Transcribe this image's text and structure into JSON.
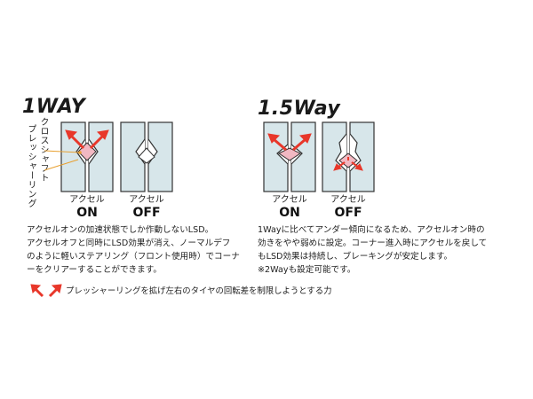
{
  "sections": [
    {
      "title": "1WAY",
      "callout_labels": [
        "クロスシャフト",
        "プレッシャーリング"
      ],
      "states": [
        {
          "label": "アクセル",
          "value": "ON"
        },
        {
          "label": "アクセル",
          "value": "OFF"
        }
      ],
      "description_lines": [
        "アクセルオンの加速状態でしか作動しないLSD。",
        "アクセルオフと同時にLSD効果が消え、ノーマルデフ",
        "のように軽いステアリング（フロント使用時）でコーナ",
        "ーをクリアーすることができます。"
      ]
    },
    {
      "title": "1.5Way",
      "states": [
        {
          "label": "アクセル",
          "value": "ON"
        },
        {
          "label": "アクセル",
          "value": "OFF"
        }
      ],
      "description_lines": [
        "1Wayに比べてアンダー傾向になるため、アクセルオン時の",
        "効きをやや弱めに設定。コーナー進入時にアクセルを戻して",
        "もLSD効果は持続し、ブレーキングが安定します。",
        "※2Wayも設定可能です。"
      ]
    }
  ],
  "legend": {
    "text": "プレッシャーリングを拡げ左右のタイヤの回転差を制限しようとする力",
    "arrow_icon": "red-diverging-arrows-icon"
  },
  "colors": {
    "plate_fill": "#d7e6ea",
    "plate_stroke": "#333333",
    "arrow_red": "#e8372a",
    "shaft_pink": "#f2b8c2",
    "leader_orange": "#e8a030"
  }
}
